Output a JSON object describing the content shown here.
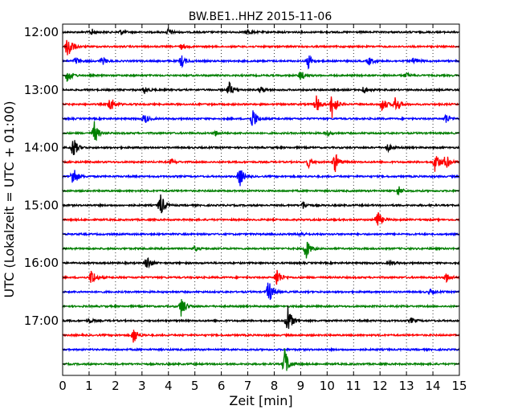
{
  "chart_data": {
    "type": "line",
    "title": "BW.BE1..HHZ 2015-11-06",
    "xlabel": "Zeit  [min]",
    "ylabel": "UTC (Lokalzeit = UTC + 01:00)",
    "xlim": [
      0,
      15
    ],
    "x_ticks": [
      0,
      1,
      2,
      3,
      4,
      5,
      6,
      7,
      8,
      9,
      10,
      11,
      12,
      13,
      14,
      15
    ],
    "hour_labels": [
      "12:00",
      "13:00",
      "14:00",
      "15:00",
      "16:00",
      "17:00"
    ],
    "grid": "vertical dotted",
    "colors": [
      "#000000",
      "#ff0000",
      "#0000ff",
      "#007f00"
    ],
    "series": [
      {
        "start": "12:00",
        "color": "#000000",
        "events": [
          {
            "x": 1.1,
            "amp": 0.25
          },
          {
            "x": 2.2,
            "amp": 0.2
          },
          {
            "x": 4.0,
            "amp": 0.3
          },
          {
            "x": 7.0,
            "amp": 0.2
          }
        ]
      },
      {
        "start": "12:15",
        "color": "#ff0000",
        "events": [
          {
            "x": 0.2,
            "amp": 1.3
          },
          {
            "x": 4.5,
            "amp": 0.2
          }
        ]
      },
      {
        "start": "12:30",
        "color": "#0000ff",
        "events": [
          {
            "x": 0.5,
            "amp": 0.3
          },
          {
            "x": 1.5,
            "amp": 0.3
          },
          {
            "x": 4.5,
            "amp": 0.5
          },
          {
            "x": 9.3,
            "amp": 0.6
          },
          {
            "x": 11.6,
            "amp": 0.3
          },
          {
            "x": 13.3,
            "amp": 0.3
          }
        ]
      },
      {
        "start": "12:45",
        "color": "#007f00",
        "events": [
          {
            "x": 0.2,
            "amp": 0.6
          },
          {
            "x": 9.0,
            "amp": 0.4
          },
          {
            "x": 13.0,
            "amp": 0.2
          }
        ]
      },
      {
        "start": "13:00",
        "color": "#000000",
        "events": [
          {
            "x": 3.1,
            "amp": 0.3
          },
          {
            "x": 6.3,
            "amp": 0.6
          },
          {
            "x": 7.5,
            "amp": 0.3
          },
          {
            "x": 11.4,
            "amp": 0.3
          }
        ]
      },
      {
        "start": "13:15",
        "color": "#ff0000",
        "events": [
          {
            "x": 1.8,
            "amp": 0.7
          },
          {
            "x": 9.6,
            "amp": 0.7
          },
          {
            "x": 10.2,
            "amp": 1.3
          },
          {
            "x": 12.1,
            "amp": 0.6
          },
          {
            "x": 12.6,
            "amp": 0.7
          }
        ]
      },
      {
        "start": "13:30",
        "color": "#0000ff",
        "events": [
          {
            "x": 3.1,
            "amp": 0.4
          },
          {
            "x": 7.2,
            "amp": 0.9
          },
          {
            "x": 14.5,
            "amp": 0.4
          }
        ]
      },
      {
        "start": "13:45",
        "color": "#007f00",
        "events": [
          {
            "x": 1.2,
            "amp": 0.9
          },
          {
            "x": 5.8,
            "amp": 0.2
          },
          {
            "x": 10.0,
            "amp": 0.2
          }
        ]
      },
      {
        "start": "14:00",
        "color": "#000000",
        "events": [
          {
            "x": 0.4,
            "amp": 0.9
          },
          {
            "x": 12.3,
            "amp": 0.3
          }
        ]
      },
      {
        "start": "14:15",
        "color": "#ff0000",
        "events": [
          {
            "x": 4.1,
            "amp": 0.2
          },
          {
            "x": 9.3,
            "amp": 0.4
          },
          {
            "x": 10.3,
            "amp": 0.8
          },
          {
            "x": 14.1,
            "amp": 0.9
          },
          {
            "x": 14.5,
            "amp": 0.6
          }
        ]
      },
      {
        "start": "14:30",
        "color": "#0000ff",
        "events": [
          {
            "x": 0.4,
            "amp": 0.9
          },
          {
            "x": 6.7,
            "amp": 0.8
          }
        ]
      },
      {
        "start": "14:45",
        "color": "#007f00",
        "events": [
          {
            "x": 12.7,
            "amp": 0.4
          }
        ]
      },
      {
        "start": "15:00",
        "color": "#000000",
        "events": [
          {
            "x": 3.7,
            "amp": 1.0
          },
          {
            "x": 9.1,
            "amp": 0.3
          }
        ]
      },
      {
        "start": "15:15",
        "color": "#ff0000",
        "events": [
          {
            "x": 11.9,
            "amp": 0.8
          }
        ]
      },
      {
        "start": "15:30",
        "color": "#0000ff",
        "events": [
          {
            "x": 9.0,
            "amp": 0.15
          }
        ]
      },
      {
        "start": "15:45",
        "color": "#007f00",
        "events": [
          {
            "x": 5.0,
            "amp": 0.2
          },
          {
            "x": 9.2,
            "amp": 0.9
          }
        ]
      },
      {
        "start": "16:00",
        "color": "#000000",
        "events": [
          {
            "x": 3.2,
            "amp": 0.6
          },
          {
            "x": 12.4,
            "amp": 0.2
          }
        ]
      },
      {
        "start": "16:15",
        "color": "#ff0000",
        "events": [
          {
            "x": 1.1,
            "amp": 0.7
          },
          {
            "x": 8.1,
            "amp": 0.8
          },
          {
            "x": 14.5,
            "amp": 0.4
          }
        ]
      },
      {
        "start": "16:30",
        "color": "#0000ff",
        "events": [
          {
            "x": 7.8,
            "amp": 1.0
          },
          {
            "x": 13.9,
            "amp": 0.2
          }
        ]
      },
      {
        "start": "16:45",
        "color": "#007f00",
        "events": [
          {
            "x": 4.5,
            "amp": 0.9
          }
        ]
      },
      {
        "start": "17:00",
        "color": "#000000",
        "events": [
          {
            "x": 8.5,
            "amp": 1.4
          },
          {
            "x": 1.0,
            "amp": 0.2
          },
          {
            "x": 13.2,
            "amp": 0.2
          }
        ]
      },
      {
        "start": "17:15",
        "color": "#ff0000",
        "events": [
          {
            "x": 2.7,
            "amp": 0.7
          }
        ]
      },
      {
        "start": "17:30",
        "color": "#0000ff",
        "events": []
      },
      {
        "start": "17:45",
        "color": "#007f00",
        "events": [
          {
            "x": 8.4,
            "amp": 1.3
          }
        ]
      }
    ]
  }
}
